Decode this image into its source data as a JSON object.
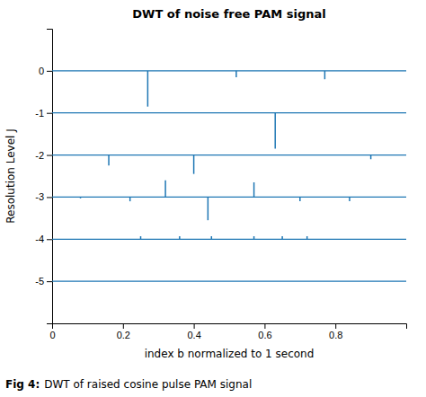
{
  "chart_data": {
    "type": "stem",
    "title": "DWT of noise free PAM signal",
    "x_label": "index b normalized to 1 second",
    "y_label": "Resolution Level J",
    "caption_bold": "Fig 4:",
    "caption": "DWT of raised cosine pulse PAM signal",
    "xlim": [
      0,
      1.0
    ],
    "ylim": [
      -6,
      1
    ],
    "xticks": [
      0,
      0.2,
      0.4,
      0.6,
      0.8
    ],
    "yticks": [
      0,
      -1,
      -2,
      -3,
      -4,
      -5
    ],
    "hlines": [
      0,
      -1,
      -2,
      -3,
      -4,
      -5
    ],
    "x": [
      0.27,
      0.52,
      0.77,
      0.63,
      0.16,
      0.4,
      0.9,
      0.32,
      0.44,
      0.57,
      0.22,
      0.7,
      0.84,
      0.08,
      0.25,
      0.36,
      0.45,
      0.57,
      0.65,
      0.72
    ],
    "base": [
      0,
      0,
      0,
      -1,
      -2,
      -2,
      -2,
      -3,
      -3,
      -3,
      -3,
      -3,
      -3,
      -3,
      -4,
      -4,
      -4,
      -4,
      -4,
      -4
    ],
    "values": [
      -0.85,
      -0.15,
      -0.2,
      -1.85,
      -2.25,
      -2.45,
      -2.1,
      -2.6,
      -3.55,
      -2.65,
      -3.1,
      -3.1,
      -3.1,
      -3.03,
      -3.93,
      -3.93,
      -3.93,
      -3.93,
      -3.93,
      -3.93
    ],
    "grid": false
  }
}
